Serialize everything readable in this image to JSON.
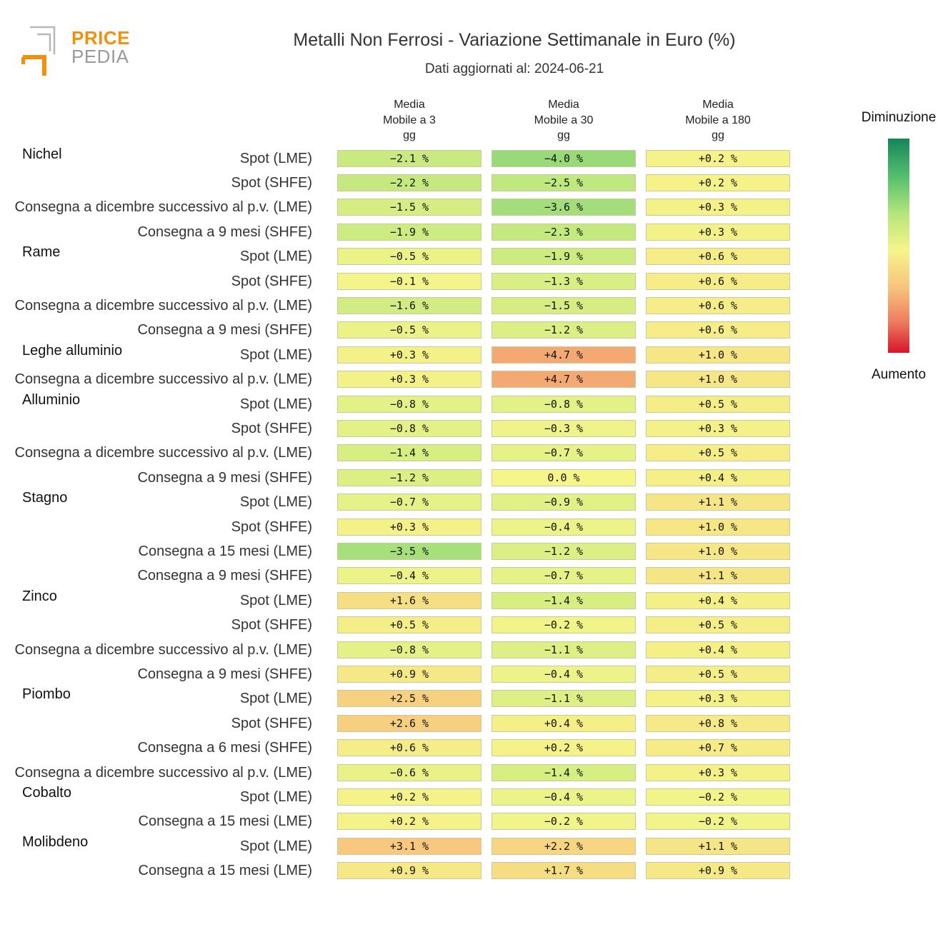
{
  "header": {
    "logo_top": "PRICE",
    "logo_bottom": "PEDIA",
    "title": "Metalli Non Ferrosi - Variazione Settimanale in Euro (%)",
    "subtitle": "Dati aggiornati al: 2024-06-21"
  },
  "legend": {
    "top": "Diminuzione",
    "bottom": "Aumento"
  },
  "chart_data": {
    "type": "heatmap",
    "title": "Metalli Non Ferrosi - Variazione Settimanale in Euro (%)",
    "subtitle": "Dati aggiornati al: 2024-06-21",
    "columns": [
      "Media\nMobile a 3\ngg",
      "Media\nMobile a 30\ngg",
      "Media\nMobile a 180\ngg"
    ],
    "unit": "%",
    "color_scale": {
      "min_label": "Diminuzione",
      "max_label": "Aumento",
      "min": -10,
      "max": 10
    },
    "groups": [
      {
        "name": "Nichel",
        "rows": [
          {
            "label": "Spot (LME)",
            "values": [
              -2.1,
              -4.0,
              0.2
            ]
          },
          {
            "label": "Spot (SHFE)",
            "values": [
              -2.2,
              -2.5,
              0.2
            ]
          },
          {
            "label": "Consegna a dicembre successivo al p.v. (LME)",
            "values": [
              -1.5,
              -3.6,
              0.3
            ]
          },
          {
            "label": "Consegna a 9 mesi (SHFE)",
            "values": [
              -1.9,
              -2.3,
              0.3
            ]
          }
        ]
      },
      {
        "name": "Rame",
        "rows": [
          {
            "label": "Spot (LME)",
            "values": [
              -0.5,
              -1.9,
              0.6
            ]
          },
          {
            "label": "Spot (SHFE)",
            "values": [
              -0.1,
              -1.3,
              0.6
            ]
          },
          {
            "label": "Consegna a dicembre successivo al p.v. (LME)",
            "values": [
              -1.6,
              -1.5,
              0.6
            ]
          },
          {
            "label": "Consegna a 9 mesi (SHFE)",
            "values": [
              -0.5,
              -1.2,
              0.6
            ]
          }
        ]
      },
      {
        "name": "Leghe alluminio",
        "rows": [
          {
            "label": "Spot (LME)",
            "values": [
              0.3,
              4.7,
              1.0
            ]
          },
          {
            "label": "Consegna a dicembre successivo al p.v. (LME)",
            "values": [
              0.3,
              4.7,
              1.0
            ]
          }
        ]
      },
      {
        "name": "Alluminio",
        "rows": [
          {
            "label": "Spot (LME)",
            "values": [
              -0.8,
              -0.8,
              0.5
            ]
          },
          {
            "label": "Spot (SHFE)",
            "values": [
              -0.8,
              -0.3,
              0.3
            ]
          },
          {
            "label": "Consegna a dicembre successivo al p.v. (LME)",
            "values": [
              -1.4,
              -0.7,
              0.5
            ]
          },
          {
            "label": "Consegna a 9 mesi (SHFE)",
            "values": [
              -1.2,
              0.0,
              0.4
            ]
          }
        ]
      },
      {
        "name": "Stagno",
        "rows": [
          {
            "label": "Spot (LME)",
            "values": [
              -0.7,
              -0.9,
              1.1
            ]
          },
          {
            "label": "Spot (SHFE)",
            "values": [
              0.3,
              -0.4,
              1.0
            ]
          },
          {
            "label": "Consegna a 15 mesi (LME)",
            "values": [
              -3.5,
              -1.2,
              1.0
            ]
          },
          {
            "label": "Consegna a 9 mesi (SHFE)",
            "values": [
              -0.4,
              -0.7,
              1.1
            ]
          }
        ]
      },
      {
        "name": "Zinco",
        "rows": [
          {
            "label": "Spot (LME)",
            "values": [
              1.6,
              -1.4,
              0.4
            ]
          },
          {
            "label": "Spot (SHFE)",
            "values": [
              0.5,
              -0.2,
              0.5
            ]
          },
          {
            "label": "Consegna a dicembre successivo al p.v. (LME)",
            "values": [
              -0.8,
              -1.1,
              0.4
            ]
          },
          {
            "label": "Consegna a 9 mesi (SHFE)",
            "values": [
              0.9,
              -0.4,
              0.5
            ]
          }
        ]
      },
      {
        "name": "Piombo",
        "rows": [
          {
            "label": "Spot (LME)",
            "values": [
              2.5,
              -1.1,
              0.3
            ]
          },
          {
            "label": "Spot (SHFE)",
            "values": [
              2.6,
              0.4,
              0.8
            ]
          },
          {
            "label": "Consegna a 6 mesi (SHFE)",
            "values": [
              0.6,
              0.2,
              0.7
            ]
          },
          {
            "label": "Consegna a dicembre successivo al p.v. (LME)",
            "values": [
              -0.6,
              -1.4,
              0.3
            ]
          }
        ]
      },
      {
        "name": "Cobalto",
        "rows": [
          {
            "label": "Spot (LME)",
            "values": [
              0.2,
              -0.4,
              -0.2
            ]
          },
          {
            "label": "Consegna a 15 mesi (LME)",
            "values": [
              0.2,
              -0.2,
              -0.2
            ]
          }
        ]
      },
      {
        "name": "Molibdeno",
        "rows": [
          {
            "label": "Spot (LME)",
            "values": [
              3.1,
              2.2,
              1.1
            ]
          },
          {
            "label": "Consegna a 15 mesi (LME)",
            "values": [
              0.9,
              1.7,
              0.9
            ]
          }
        ]
      }
    ]
  }
}
